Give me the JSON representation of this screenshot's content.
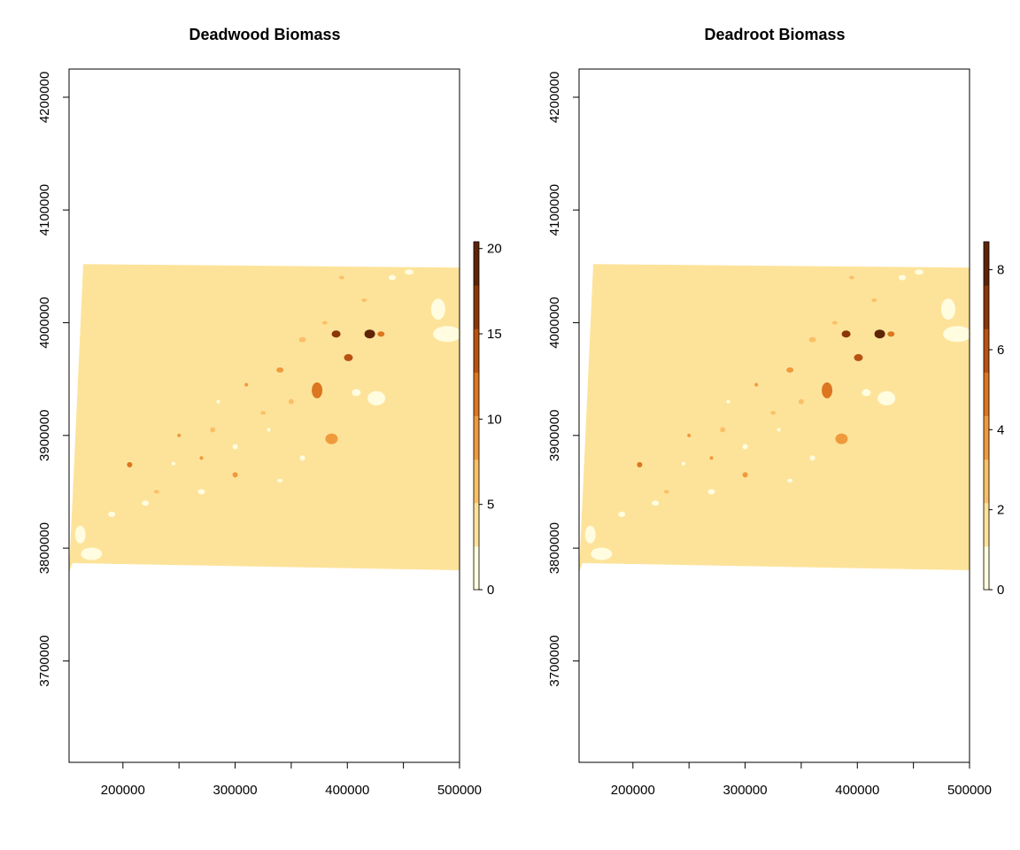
{
  "chart_data": [
    {
      "type": "heatmap",
      "title": "Deadwood Biomass",
      "x_ticks": [
        200000,
        300000,
        400000,
        500000
      ],
      "x_minor_ticks": [
        250000,
        350000,
        450000
      ],
      "y_ticks": [
        3700000,
        3800000,
        3900000,
        4000000,
        4100000,
        4200000
      ],
      "xlim": [
        152000,
        500000
      ],
      "ylim": [
        3610000,
        4225000
      ],
      "legend": {
        "placement": "right",
        "ticks": [
          0,
          5,
          10,
          15,
          20
        ],
        "max": 20.4
      },
      "palette": [
        "#fffce0",
        "#fde39a",
        "#fac068",
        "#ef9a3c",
        "#dc7620",
        "#b85212",
        "#8c3608",
        "#5e2406"
      ],
      "base_color": "#fde39a",
      "raster_extent_x": [
        152000,
        500000
      ],
      "raster_extent_y": [
        3782000,
        4052000
      ]
    },
    {
      "type": "heatmap",
      "title": "Deadroot Biomass",
      "x_ticks": [
        200000,
        300000,
        400000,
        500000
      ],
      "x_minor_ticks": [
        250000,
        350000,
        450000
      ],
      "y_ticks": [
        3700000,
        3800000,
        3900000,
        4000000,
        4100000,
        4200000
      ],
      "xlim": [
        152000,
        500000
      ],
      "ylim": [
        3610000,
        4225000
      ],
      "legend": {
        "placement": "right",
        "ticks": [
          0,
          2,
          4,
          6,
          8
        ],
        "max": 8.7
      },
      "palette": [
        "#fffce0",
        "#fde39a",
        "#fac068",
        "#ef9a3c",
        "#dc7620",
        "#b85212",
        "#8c3608",
        "#5e2406"
      ],
      "base_color": "#fde39a",
      "raster_extent_x": [
        152000,
        500000
      ],
      "raster_extent_y": [
        3782000,
        4052000
      ]
    }
  ]
}
